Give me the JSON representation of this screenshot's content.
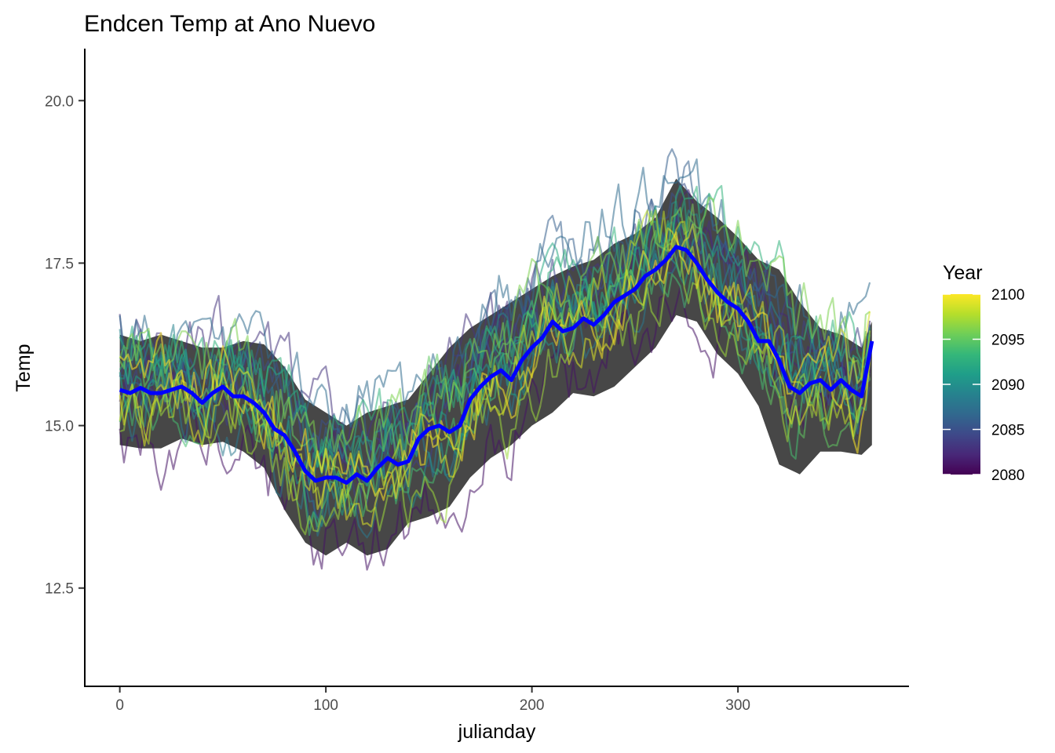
{
  "chart_data": {
    "type": "line",
    "title": "Endcen Temp at Ano Nuevo",
    "xlabel": "julianday",
    "ylabel": "Temp",
    "xlim": [
      -17,
      383
    ],
    "ylim": [
      11.0,
      20.8
    ],
    "x_ticks": [
      0,
      100,
      200,
      300
    ],
    "y_ticks": [
      12.5,
      15.0,
      17.5,
      20.0
    ],
    "x_tick_labels": [
      "0",
      "100",
      "200",
      "300"
    ],
    "y_tick_labels": [
      "12.5",
      "15.0",
      "17.5",
      "20.0"
    ],
    "grid": false,
    "legend": {
      "title": "Year",
      "placement": "right",
      "type": "colorbar",
      "range": [
        2080,
        2100
      ],
      "tick_values": [
        2080,
        2085,
        2090,
        2095,
        2100
      ],
      "tick_labels": [
        "2080",
        "2085",
        "2090",
        "2095",
        "2100"
      ],
      "colormap": "viridis",
      "colors": [
        "#440154",
        "#482878",
        "#3e4989",
        "#31688e",
        "#26828e",
        "#1f9e89",
        "#35b779",
        "#6ece58",
        "#b5de2b",
        "#fde725"
      ]
    },
    "years": [
      2081,
      2082,
      2083,
      2084,
      2085,
      2086,
      2087,
      2088,
      2089,
      2090,
      2091,
      2092,
      2093,
      2094,
      2095,
      2096,
      2097,
      2098,
      2099,
      2100
    ],
    "series_opacity": 0.55,
    "mean_series": {
      "color": "#0000ff",
      "x": [
        0,
        5,
        10,
        15,
        20,
        25,
        30,
        35,
        40,
        45,
        50,
        55,
        60,
        65,
        70,
        75,
        80,
        85,
        90,
        95,
        100,
        105,
        110,
        115,
        120,
        125,
        130,
        135,
        140,
        145,
        150,
        155,
        160,
        165,
        170,
        175,
        180,
        185,
        190,
        195,
        200,
        205,
        210,
        215,
        220,
        225,
        230,
        235,
        240,
        245,
        250,
        255,
        260,
        265,
        270,
        275,
        280,
        285,
        290,
        295,
        300,
        305,
        310,
        315,
        320,
        325,
        330,
        335,
        340,
        345,
        350,
        355,
        360,
        365
      ],
      "y": [
        15.55,
        15.5,
        15.58,
        15.5,
        15.5,
        15.55,
        15.6,
        15.5,
        15.35,
        15.5,
        15.6,
        15.45,
        15.45,
        15.35,
        15.2,
        14.95,
        14.85,
        14.6,
        14.3,
        14.15,
        14.2,
        14.2,
        14.12,
        14.25,
        14.15,
        14.35,
        14.5,
        14.4,
        14.45,
        14.8,
        14.95,
        15.0,
        14.9,
        15.0,
        15.4,
        15.6,
        15.75,
        15.85,
        15.7,
        16.0,
        16.2,
        16.35,
        16.6,
        16.45,
        16.5,
        16.65,
        16.55,
        16.7,
        16.9,
        17.0,
        17.1,
        17.3,
        17.4,
        17.55,
        17.75,
        17.7,
        17.5,
        17.25,
        17.05,
        16.9,
        16.8,
        16.6,
        16.3,
        16.3,
        16.0,
        15.6,
        15.5,
        15.65,
        15.7,
        15.55,
        15.7,
        15.55,
        15.45,
        16.3
      ]
    },
    "band": {
      "color": "#333333",
      "opacity": 0.9,
      "x": [
        0,
        10,
        20,
        30,
        40,
        50,
        60,
        70,
        80,
        90,
        100,
        110,
        120,
        130,
        140,
        150,
        160,
        170,
        180,
        190,
        200,
        210,
        220,
        230,
        240,
        250,
        260,
        270,
        280,
        290,
        300,
        310,
        320,
        330,
        340,
        350,
        360,
        365
      ],
      "upper": [
        16.4,
        16.3,
        16.4,
        16.3,
        16.2,
        16.2,
        16.3,
        16.25,
        15.9,
        15.4,
        15.2,
        15.0,
        15.2,
        15.3,
        15.4,
        15.8,
        16.2,
        16.5,
        16.7,
        16.9,
        17.1,
        17.3,
        17.45,
        17.55,
        17.8,
        17.95,
        18.2,
        18.8,
        18.45,
        18.2,
        17.9,
        17.55,
        17.4,
        16.9,
        16.5,
        16.4,
        16.2,
        16.6
      ],
      "lower": [
        14.7,
        14.65,
        14.65,
        14.8,
        14.7,
        14.75,
        14.6,
        14.35,
        13.7,
        13.2,
        13.0,
        13.2,
        13.0,
        13.1,
        13.5,
        13.6,
        13.75,
        14.2,
        14.5,
        14.7,
        15.0,
        15.2,
        15.5,
        15.45,
        15.6,
        15.9,
        16.2,
        16.7,
        16.6,
        16.1,
        15.8,
        15.3,
        14.4,
        14.25,
        14.6,
        14.6,
        14.55,
        14.7
      ]
    }
  }
}
